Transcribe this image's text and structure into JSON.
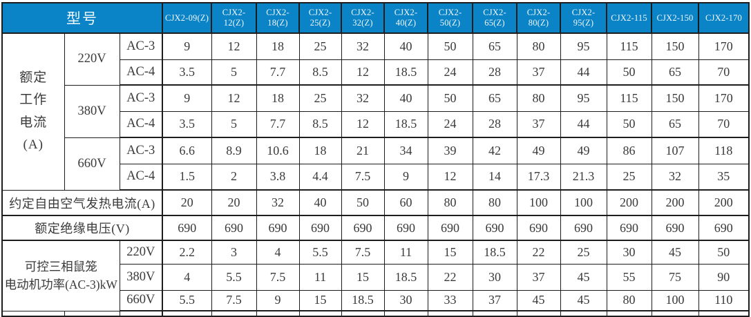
{
  "colors": {
    "header_bg": "#0b84c7",
    "header_text": "#f2f7fb",
    "border": "#1c1c1c",
    "cell_text": "#3a3a3a",
    "page_bg": "#ffffff"
  },
  "header": {
    "model_label": "型号",
    "models": [
      "CJX2-09(Z)",
      "CJX2-12(Z)",
      "CJX2-18(Z)",
      "CJX2-25(Z)",
      "CJX2-32(Z)",
      "CJX2-40(Z)",
      "CJX2-50(Z)",
      "CJX2-65(Z)",
      "CJX2-80(Z)",
      "CJX2-95(Z)",
      "CJX2-115",
      "CJX2-150",
      "CJX2-170"
    ],
    "units": ""
  },
  "rated_current": {
    "label": "额定\n工作\n电流\n(A)",
    "groups": [
      {
        "voltage": "220V",
        "rows": [
          {
            "category": "AC-3",
            "values": [
              9,
              12,
              18,
              25,
              32,
              40,
              50,
              65,
              80,
              95,
              115,
              150,
              170
            ]
          },
          {
            "category": "AC-4",
            "values": [
              3.5,
              5,
              7.7,
              8.5,
              12,
              18.5,
              24,
              28,
              37,
              44,
              50,
              65,
              70
            ]
          }
        ]
      },
      {
        "voltage": "380V",
        "rows": [
          {
            "category": "AC-3",
            "values": [
              9,
              12,
              18,
              25,
              32,
              40,
              50,
              65,
              80,
              95,
              115,
              150,
              170
            ]
          },
          {
            "category": "AC-4",
            "values": [
              3.5,
              5,
              7.7,
              8.5,
              12,
              18.5,
              24,
              28,
              37,
              44,
              50,
              65,
              70
            ]
          }
        ]
      },
      {
        "voltage": "660V",
        "rows": [
          {
            "category": "AC-3",
            "values": [
              6.6,
              8.9,
              10.6,
              18,
              21,
              34,
              39,
              42,
              49,
              49,
              86,
              107,
              118
            ]
          },
          {
            "category": "AC-4",
            "values": [
              1.5,
              2,
              3.8,
              4.4,
              7.5,
              9,
              12,
              14,
              17.3,
              21.3,
              25,
              32,
              35
            ]
          }
        ]
      }
    ]
  },
  "thermal_current": {
    "label": "约定自由空气发热电流(A)",
    "values": [
      20,
      20,
      32,
      40,
      50,
      60,
      80,
      80,
      100,
      100,
      200,
      200,
      200
    ]
  },
  "insulation_voltage": {
    "label": "额定绝缘电压(V)",
    "values": [
      690,
      690,
      690,
      690,
      690,
      690,
      690,
      690,
      690,
      690,
      690,
      690,
      690
    ]
  },
  "motor_power": {
    "label": "可控三相鼠笼\n电动机功率(AC-3)kW",
    "rows": [
      {
        "voltage": "220V",
        "values": [
          2.2,
          3,
          4,
          5.5,
          7.5,
          11,
          15,
          18.5,
          22,
          25,
          30,
          45,
          50
        ]
      },
      {
        "voltage": "380V",
        "values": [
          4,
          5.5,
          7.5,
          11,
          15,
          18.5,
          22,
          30,
          37,
          45,
          55,
          75,
          90
        ]
      },
      {
        "voltage": "660V",
        "values": [
          5.5,
          7.5,
          9,
          15,
          18.5,
          30,
          33,
          37,
          45,
          45,
          80,
          100,
          110
        ]
      }
    ]
  }
}
